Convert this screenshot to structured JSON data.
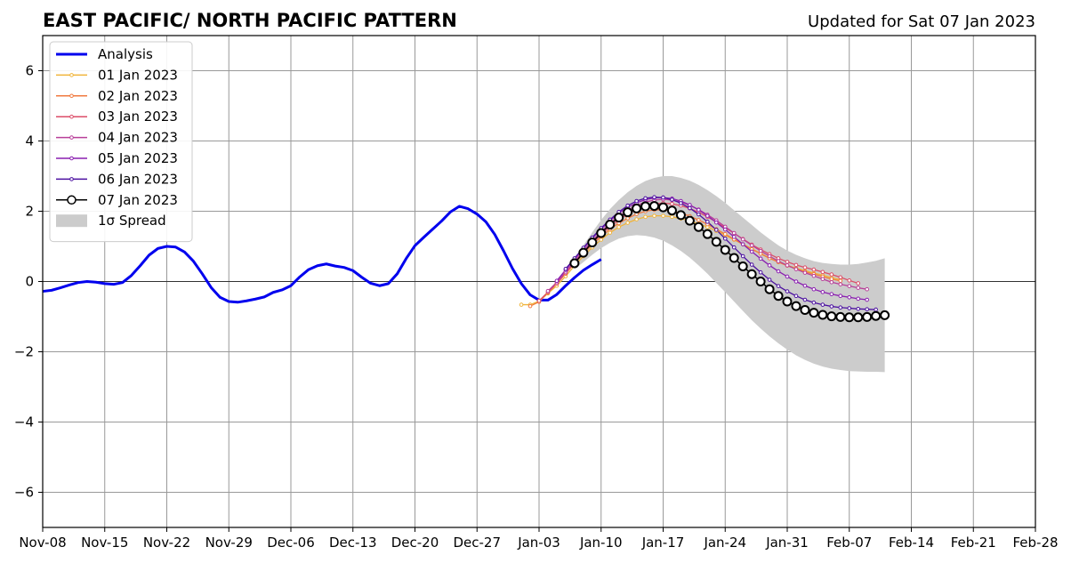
{
  "title": "EAST PACIFIC/ NORTH PACIFIC PATTERN",
  "subtitle": "Updated for Sat 07 Jan 2023",
  "chart_data": {
    "type": "line",
    "xaxis": {
      "range": [
        "2022-11-08",
        "2023-02-28"
      ],
      "ticks": [
        {
          "date": "2022-11-08",
          "label": "Nov-08"
        },
        {
          "date": "2022-11-15",
          "label": "Nov-15"
        },
        {
          "date": "2022-11-22",
          "label": "Nov-22"
        },
        {
          "date": "2022-11-29",
          "label": "Nov-29"
        },
        {
          "date": "2022-12-06",
          "label": "Dec-06"
        },
        {
          "date": "2022-12-13",
          "label": "Dec-13"
        },
        {
          "date": "2022-12-20",
          "label": "Dec-20"
        },
        {
          "date": "2022-12-27",
          "label": "Dec-27"
        },
        {
          "date": "2023-01-03",
          "label": "Jan-03"
        },
        {
          "date": "2023-01-10",
          "label": "Jan-10"
        },
        {
          "date": "2023-01-17",
          "label": "Jan-17"
        },
        {
          "date": "2023-01-24",
          "label": "Jan-24"
        },
        {
          "date": "2023-01-31",
          "label": "Jan-31"
        },
        {
          "date": "2023-02-07",
          "label": "Feb-07"
        },
        {
          "date": "2023-02-14",
          "label": "Feb-14"
        },
        {
          "date": "2023-02-21",
          "label": "Feb-21"
        },
        {
          "date": "2023-02-28",
          "label": "Feb-28"
        }
      ]
    },
    "yaxis": {
      "range": [
        -7,
        7
      ],
      "ticks": [
        {
          "value": 6,
          "label": "6"
        },
        {
          "value": 4,
          "label": "4"
        },
        {
          "value": 2,
          "label": "2"
        },
        {
          "value": 0,
          "label": "0"
        },
        {
          "value": -2,
          "label": "−2"
        },
        {
          "value": -4,
          "label": "−4"
        },
        {
          "value": -6,
          "label": "−6"
        }
      ]
    },
    "grid": true,
    "legend_position": "top-left",
    "series": [
      {
        "name": "Analysis",
        "color": "#0000ee",
        "style": "analysis",
        "start_date": "2022-11-08",
        "values": [
          -0.28,
          -0.25,
          -0.18,
          -0.1,
          -0.03,
          0.0,
          -0.02,
          -0.06,
          -0.08,
          -0.03,
          0.17,
          0.45,
          0.75,
          0.94,
          1.0,
          0.98,
          0.84,
          0.58,
          0.22,
          -0.17,
          -0.45,
          -0.57,
          -0.59,
          -0.55,
          -0.5,
          -0.44,
          -0.31,
          -0.24,
          -0.12,
          0.13,
          0.34,
          0.45,
          0.5,
          0.44,
          0.4,
          0.31,
          0.12,
          -0.05,
          -0.12,
          -0.06,
          0.22,
          0.65,
          1.02,
          1.26,
          1.49,
          1.72,
          1.98,
          2.14,
          2.07,
          1.92,
          1.7,
          1.34,
          0.87,
          0.37,
          -0.06,
          -0.38,
          -0.53,
          -0.53,
          -0.37,
          -0.12,
          0.11,
          0.32,
          0.48,
          0.63
        ]
      },
      {
        "name": "01 Jan 2023",
        "color": "#f0b43a",
        "style": "forecast",
        "start_date": "2023-01-01",
        "values": [
          -0.66,
          -0.66,
          -0.56,
          -0.34,
          -0.12,
          0.15,
          0.45,
          0.72,
          0.97,
          1.19,
          1.39,
          1.55,
          1.67,
          1.77,
          1.84,
          1.87,
          1.87,
          1.84,
          1.79,
          1.73,
          1.64,
          1.55,
          1.44,
          1.32,
          1.19,
          1.06,
          0.93,
          0.8,
          0.67,
          0.56,
          0.46,
          0.38,
          0.31,
          0.24,
          0.18,
          0.11,
          0.05
        ]
      },
      {
        "name": "02 Jan 2023",
        "color": "#f07a40",
        "style": "forecast",
        "start_date": "2023-01-02",
        "values": [
          -0.7,
          -0.58,
          -0.32,
          -0.06,
          0.22,
          0.52,
          0.79,
          1.05,
          1.28,
          1.49,
          1.66,
          1.8,
          1.92,
          2.0,
          2.04,
          2.04,
          2.01,
          1.95,
          1.86,
          1.75,
          1.63,
          1.49,
          1.35,
          1.2,
          1.06,
          0.92,
          0.79,
          0.66,
          0.55,
          0.45,
          0.36,
          0.28,
          0.21,
          0.14,
          0.07,
          0.02
        ]
      },
      {
        "name": "03 Jan 2023",
        "color": "#dc4d68",
        "style": "forecast",
        "start_date": "2023-01-03",
        "values": [
          -0.55,
          -0.3,
          -0.06,
          0.24,
          0.54,
          0.83,
          1.09,
          1.34,
          1.56,
          1.75,
          1.92,
          2.05,
          2.15,
          2.21,
          2.23,
          2.21,
          2.16,
          2.08,
          1.97,
          1.84,
          1.69,
          1.53,
          1.37,
          1.21,
          1.05,
          0.91,
          0.78,
          0.66,
          0.56,
          0.47,
          0.4,
          0.34,
          0.27,
          0.2,
          0.12,
          0.03,
          -0.05
        ]
      },
      {
        "name": "04 Jan 2023",
        "color": "#b83f99",
        "style": "forecast",
        "start_date": "2023-01-04",
        "values": [
          -0.27,
          -0.02,
          0.28,
          0.58,
          0.88,
          1.16,
          1.42,
          1.66,
          1.86,
          2.03,
          2.16,
          2.26,
          2.32,
          2.34,
          2.32,
          2.26,
          2.17,
          2.05,
          1.9,
          1.74,
          1.56,
          1.38,
          1.2,
          1.03,
          0.87,
          0.72,
          0.58,
          0.46,
          0.35,
          0.25,
          0.16,
          0.07,
          -0.02,
          -0.08,
          -0.13,
          -0.18,
          -0.22
        ]
      },
      {
        "name": "05 Jan 2023",
        "color": "#8a1fb0",
        "style": "forecast",
        "start_date": "2023-01-05",
        "values": [
          0.02,
          0.33,
          0.64,
          0.94,
          1.23,
          1.49,
          1.73,
          1.94,
          2.11,
          2.24,
          2.33,
          2.38,
          2.39,
          2.36,
          2.29,
          2.18,
          2.04,
          1.87,
          1.68,
          1.48,
          1.27,
          1.06,
          0.85,
          0.65,
          0.46,
          0.29,
          0.14,
          0.0,
          -0.12,
          -0.22,
          -0.3,
          -0.36,
          -0.41,
          -0.45,
          -0.49,
          -0.52
        ]
      },
      {
        "name": "06 Jan 2023",
        "color": "#4b0fa0",
        "style": "forecast",
        "start_date": "2023-01-06",
        "values": [
          0.36,
          0.66,
          0.96,
          1.25,
          1.52,
          1.76,
          1.98,
          2.16,
          2.29,
          2.37,
          2.4,
          2.39,
          2.33,
          2.23,
          2.09,
          1.91,
          1.7,
          1.47,
          1.22,
          0.97,
          0.72,
          0.48,
          0.26,
          0.05,
          -0.13,
          -0.28,
          -0.41,
          -0.52,
          -0.6,
          -0.66,
          -0.71,
          -0.74,
          -0.76,
          -0.78,
          -0.79,
          -0.8
        ]
      },
      {
        "name": "07 Jan 2023",
        "color": "#000000",
        "style": "current",
        "start_date": "2023-01-07",
        "values": [
          0.52,
          0.82,
          1.11,
          1.38,
          1.62,
          1.82,
          1.97,
          2.08,
          2.14,
          2.15,
          2.11,
          2.02,
          1.89,
          1.73,
          1.55,
          1.35,
          1.13,
          0.9,
          0.67,
          0.43,
          0.21,
          0.0,
          -0.22,
          -0.41,
          -0.57,
          -0.7,
          -0.81,
          -0.89,
          -0.95,
          -0.99,
          -1.01,
          -1.02,
          -1.02,
          -1.01,
          -0.98,
          -0.96
        ]
      }
    ],
    "spread": {
      "name": "1σ Spread",
      "color": "#cccccc",
      "start_date": "2023-01-07",
      "upper": [
        0.65,
        1.03,
        1.4,
        1.75,
        2.06,
        2.32,
        2.54,
        2.72,
        2.86,
        2.95,
        3.0,
        3.0,
        2.95,
        2.87,
        2.75,
        2.6,
        2.43,
        2.24,
        2.03,
        1.82,
        1.61,
        1.4,
        1.21,
        1.03,
        0.88,
        0.76,
        0.66,
        0.58,
        0.53,
        0.5,
        0.48,
        0.48,
        0.5,
        0.54,
        0.59,
        0.66
      ],
      "lower": [
        0.35,
        0.55,
        0.76,
        0.95,
        1.1,
        1.22,
        1.29,
        1.32,
        1.3,
        1.25,
        1.16,
        1.03,
        0.87,
        0.68,
        0.46,
        0.22,
        -0.04,
        -0.3,
        -0.57,
        -0.84,
        -1.1,
        -1.34,
        -1.56,
        -1.76,
        -1.94,
        -2.1,
        -2.23,
        -2.34,
        -2.42,
        -2.48,
        -2.52,
        -2.55,
        -2.56,
        -2.57,
        -2.57,
        -2.58
      ]
    }
  }
}
